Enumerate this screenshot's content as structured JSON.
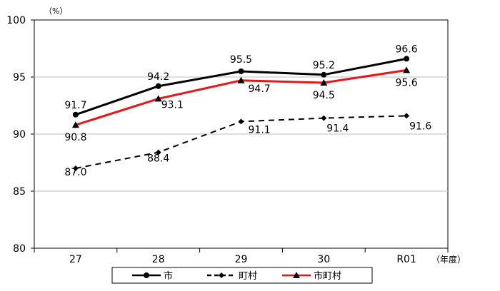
{
  "chart_data": {
    "type": "line",
    "categories": [
      "27",
      "28",
      "29",
      "30",
      "R01"
    ],
    "ylim": [
      80,
      100
    ],
    "yticks": [
      80,
      85,
      90,
      95,
      100
    ],
    "y_unit_label": "（%）",
    "x_unit_label": "（年度）",
    "grid": true,
    "legend_position": "bottom",
    "series": [
      {
        "name": "市",
        "values": [
          91.7,
          94.2,
          95.5,
          95.2,
          96.6
        ],
        "color": "#000000",
        "dash": "solid",
        "marker": "circle"
      },
      {
        "name": "町村",
        "values": [
          87.0,
          88.4,
          91.1,
          91.4,
          91.6
        ],
        "color": "#000000",
        "dash": "dashed",
        "marker": "diamond"
      },
      {
        "name": "市町村",
        "values": [
          90.8,
          93.1,
          94.7,
          94.5,
          95.6
        ],
        "color": "#e8161b",
        "dash": "solid",
        "marker": "triangle"
      }
    ]
  }
}
